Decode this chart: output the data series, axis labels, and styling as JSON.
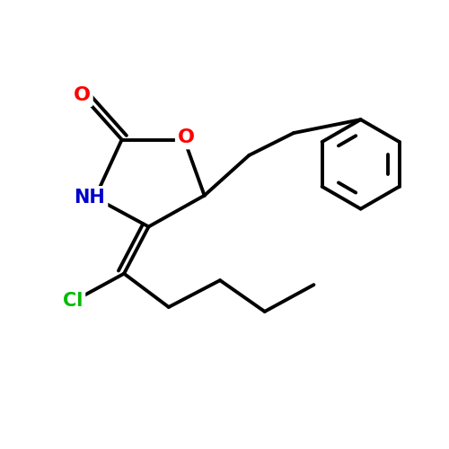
{
  "bg_color": "#ffffff",
  "bond_color": "#000000",
  "bond_width": 2.8,
  "atom_colors": {
    "O": "#ff0000",
    "N": "#0000cc",
    "Cl": "#00bb00",
    "C": "#000000"
  },
  "font_size": 15,
  "fig_size": [
    5.0,
    5.0
  ],
  "dpi": 100,
  "xlim": [
    0,
    10
  ],
  "ylim": [
    0,
    10
  ]
}
